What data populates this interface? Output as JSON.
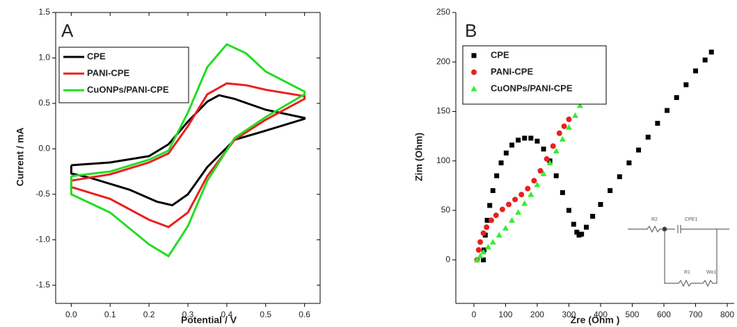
{
  "chart_data": [
    {
      "type": "line",
      "panel_label": "A",
      "x_label": "Potential / V",
      "y_label": "Current / mA",
      "xlim": [
        -0.04,
        0.64
      ],
      "ylim": [
        -1.7,
        1.5
      ],
      "xticks": [
        {
          "value": 0,
          "label": "0.0"
        },
        0.1,
        0.2,
        0.3,
        0.4,
        0.5,
        0.6
      ],
      "yticks": [
        {
          "value": -1.5,
          "label": "-1.5"
        },
        {
          "value": -1,
          "label": "-1.0"
        },
        {
          "value": -0.5,
          "label": "-0.5"
        },
        {
          "value": 0,
          "label": "0.0"
        },
        {
          "value": 0.5,
          "label": "0.5"
        },
        {
          "value": 1,
          "label": "1.0"
        },
        {
          "value": 1.5,
          "label": "1.5"
        }
      ],
      "series": [
        {
          "name": "CPE",
          "color": "#000000",
          "x": [
            0,
            0.1,
            0.2,
            0.25,
            0.3,
            0.35,
            0.38,
            0.42,
            0.5,
            0.6,
            0.6,
            0.5,
            0.42,
            0.35,
            0.3,
            0.26,
            0.22,
            0.15,
            0.05,
            0,
            0
          ],
          "values": [
            -0.18,
            -0.15,
            -0.08,
            0.05,
            0.3,
            0.52,
            0.59,
            0.55,
            0.43,
            0.34,
            0.33,
            0.2,
            0.1,
            -0.2,
            -0.5,
            -0.62,
            -0.58,
            -0.45,
            -0.32,
            -0.27,
            -0.18
          ]
        },
        {
          "name": "PANI-CPE",
          "color": "#e8201c",
          "x": [
            0,
            0.1,
            0.2,
            0.25,
            0.3,
            0.35,
            0.4,
            0.45,
            0.5,
            0.6,
            0.6,
            0.5,
            0.42,
            0.35,
            0.3,
            0.25,
            0.2,
            0.1,
            0,
            0
          ],
          "values": [
            -0.35,
            -0.28,
            -0.15,
            -0.05,
            0.25,
            0.6,
            0.72,
            0.7,
            0.65,
            0.58,
            0.55,
            0.32,
            0.1,
            -0.3,
            -0.7,
            -0.86,
            -0.78,
            -0.55,
            -0.42,
            -0.35
          ]
        },
        {
          "name": "CuONPs/PANI-CPE",
          "color": "#22dd22",
          "x": [
            0,
            0.1,
            0.2,
            0.25,
            0.3,
            0.35,
            0.4,
            0.45,
            0.5,
            0.6,
            0.6,
            0.5,
            0.42,
            0.35,
            0.3,
            0.25,
            0.2,
            0.1,
            0,
            0
          ],
          "values": [
            -0.3,
            -0.25,
            -0.12,
            -0.02,
            0.4,
            0.9,
            1.15,
            1.05,
            0.85,
            0.63,
            0.6,
            0.35,
            0.12,
            -0.35,
            -0.85,
            -1.18,
            -1.05,
            -0.7,
            -0.5,
            -0.3
          ]
        }
      ]
    },
    {
      "type": "scatter",
      "panel_label": "B",
      "x_label": "Zre (Ohm )",
      "y_label": "Zim (Ohm)",
      "xlim": [
        -57,
        822
      ],
      "ylim": [
        -44,
        250
      ],
      "xticks": [
        0,
        100,
        200,
        300,
        400,
        500,
        600,
        700,
        800
      ],
      "yticks": [
        0,
        50,
        100,
        150,
        200,
        250
      ],
      "inset_labels": [
        "R2",
        "CPE1",
        "R1",
        "Wo1"
      ],
      "series": [
        {
          "name": "CPE",
          "color": "#000000",
          "marker": "square",
          "x": [
            30,
            32,
            36,
            42,
            50,
            60,
            72,
            86,
            102,
            120,
            140,
            160,
            180,
            200,
            220,
            240,
            260,
            280,
            300,
            315,
            325,
            332,
            340,
            355,
            375,
            400,
            430,
            460,
            490,
            520,
            550,
            580,
            610,
            640,
            670,
            700,
            730,
            750
          ],
          "values": [
            0,
            10,
            25,
            40,
            55,
            70,
            85,
            98,
            108,
            116,
            121,
            123,
            123,
            120,
            112,
            100,
            85,
            68,
            50,
            36,
            28,
            25,
            26,
            33,
            44,
            56,
            70,
            84,
            98,
            111,
            124,
            138,
            151,
            164,
            177,
            191,
            202,
            210
          ]
        },
        {
          "name": "PANI-CPE",
          "color": "#e8201c",
          "marker": "circle",
          "x": [
            10,
            15,
            20,
            30,
            40,
            55,
            70,
            90,
            110,
            130,
            150,
            170,
            190,
            210,
            230,
            250,
            270,
            285,
            300
          ],
          "values": [
            0,
            10,
            18,
            27,
            33,
            40,
            45,
            51,
            56,
            61,
            66,
            72,
            80,
            90,
            102,
            115,
            128,
            135,
            142
          ]
        },
        {
          "name": "CuONPs/PANI-CPE",
          "color": "#33ee33",
          "marker": "triangle",
          "x": [
            10,
            20,
            30,
            45,
            60,
            80,
            100,
            120,
            140,
            160,
            180,
            200,
            220,
            240,
            260,
            280,
            300,
            320,
            335
          ],
          "values": [
            0,
            4,
            8,
            13,
            18,
            25,
            32,
            40,
            48,
            57,
            66,
            76,
            87,
            98,
            110,
            122,
            134,
            146,
            156
          ]
        }
      ]
    }
  ]
}
